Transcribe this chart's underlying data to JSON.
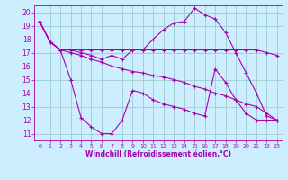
{
  "xlabel": "Windchill (Refroidissement éolien,°C)",
  "background_color": "#cceeff",
  "line_color": "#aa00aa",
  "grid_color": "#99cccc",
  "xlim": [
    -0.5,
    23.5
  ],
  "ylim": [
    10.5,
    20.5
  ],
  "yticks": [
    11,
    12,
    13,
    14,
    15,
    16,
    17,
    18,
    19,
    20
  ],
  "xticks": [
    0,
    1,
    2,
    3,
    4,
    5,
    6,
    7,
    8,
    9,
    10,
    11,
    12,
    13,
    14,
    15,
    16,
    17,
    18,
    19,
    20,
    21,
    22,
    23
  ],
  "lines": [
    {
      "x": [
        0,
        1,
        2,
        3,
        4,
        5,
        6,
        7,
        8,
        9,
        10,
        11,
        12,
        13,
        14,
        15,
        16,
        17,
        18,
        19,
        20,
        21,
        22,
        23
      ],
      "y": [
        19.3,
        17.8,
        17.2,
        17.2,
        17.2,
        17.2,
        17.2,
        17.2,
        17.2,
        17.2,
        17.2,
        17.2,
        17.2,
        17.2,
        17.2,
        17.2,
        17.2,
        17.2,
        17.2,
        17.2,
        17.2,
        17.2,
        17.0,
        16.8
      ]
    },
    {
      "x": [
        0,
        1,
        2,
        3,
        4,
        5,
        6,
        7,
        8,
        9,
        10,
        11,
        12,
        13,
        14,
        15,
        16,
        17,
        18,
        19,
        20,
        21,
        22,
        23
      ],
      "y": [
        19.3,
        17.8,
        17.2,
        17.2,
        17.0,
        16.8,
        16.5,
        16.8,
        16.5,
        17.2,
        17.2,
        18.0,
        18.7,
        19.2,
        19.3,
        20.3,
        19.8,
        19.5,
        18.5,
        17.0,
        15.5,
        14.0,
        12.3,
        12.0
      ]
    },
    {
      "x": [
        0,
        1,
        2,
        3,
        4,
        5,
        6,
        7,
        8,
        9,
        10,
        11,
        12,
        13,
        14,
        15,
        16,
        17,
        18,
        19,
        20,
        21,
        22,
        23
      ],
      "y": [
        19.3,
        17.8,
        17.2,
        15.0,
        12.2,
        11.5,
        11.0,
        11.0,
        12.0,
        14.2,
        14.0,
        13.5,
        13.2,
        13.0,
        12.8,
        12.5,
        12.3,
        15.8,
        14.8,
        13.5,
        12.5,
        12.0,
        12.0,
        12.0
      ]
    },
    {
      "x": [
        0,
        1,
        2,
        3,
        4,
        5,
        6,
        7,
        8,
        9,
        10,
        11,
        12,
        13,
        14,
        15,
        16,
        17,
        18,
        19,
        20,
        21,
        22,
        23
      ],
      "y": [
        19.3,
        17.8,
        17.2,
        17.0,
        16.8,
        16.5,
        16.3,
        16.0,
        15.8,
        15.6,
        15.5,
        15.3,
        15.2,
        15.0,
        14.8,
        14.5,
        14.3,
        14.0,
        13.8,
        13.5,
        13.2,
        13.0,
        12.5,
        12.0
      ]
    }
  ]
}
